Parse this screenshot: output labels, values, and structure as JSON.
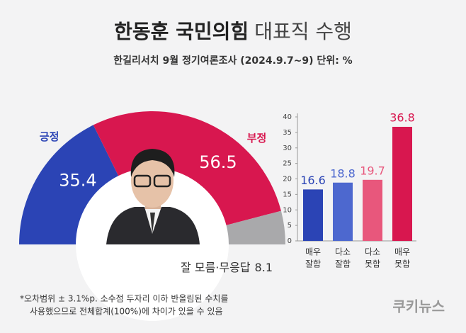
{
  "header": {
    "title_bold": "한동훈 국민의힘",
    "title_light": "대표직 수행",
    "subtitle": "한길리서치 9월 정기여론조사 (2024.9.7~9) 단위: %"
  },
  "chart_data": [
    {
      "type": "pie",
      "categories": [
        "긍정",
        "부정",
        "잘 모름·무응답"
      ],
      "values": [
        35.4,
        56.5,
        8.1
      ],
      "colors": [
        "#2b44b5",
        "#d8174f",
        "#a9a9ab"
      ]
    },
    {
      "type": "bar",
      "categories": [
        [
          "매우",
          "잘함"
        ],
        [
          "다소",
          "잘함"
        ],
        [
          "다소",
          "못함"
        ],
        [
          "매우",
          "못함"
        ]
      ],
      "values": [
        16.6,
        18.8,
        19.7,
        36.8
      ],
      "colors": [
        "#2b44b5",
        "#4d68cf",
        "#e8577c",
        "#d8174f"
      ],
      "ylim": [
        0,
        40
      ],
      "yticks": [
        0,
        5,
        10,
        15,
        20,
        25,
        30,
        35,
        40
      ]
    }
  ],
  "footnote": [
    "*오차범위 ± 3.1%p. 소수점 두자리 이하 반올림된 수치를",
    "사용했으므로 전체합계(100%)에 차이가 있을 수 있음"
  ],
  "logo": "쿠키뉴스"
}
